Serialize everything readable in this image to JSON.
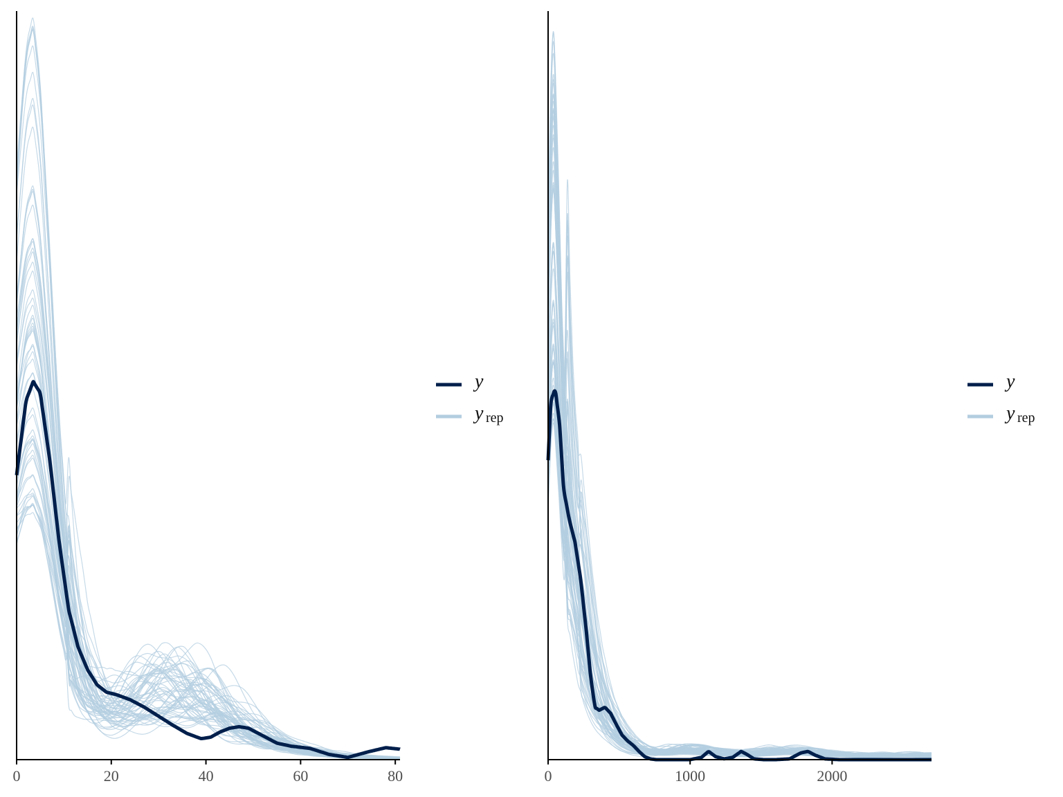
{
  "chart_data": [
    {
      "type": "line",
      "title": "",
      "xlabel": "",
      "ylabel": "",
      "xlim": [
        0,
        81
      ],
      "ylim": [
        0,
        1.0
      ],
      "x_ticks": [
        0,
        20,
        40,
        60,
        80
      ],
      "x_tick_labels": [
        "0",
        "20",
        "40",
        "60",
        "80"
      ],
      "y_axis_labels": false,
      "grid": false,
      "legend": {
        "position": "right",
        "entries": [
          {
            "main": "y",
            "sub": ""
          },
          {
            "main": "y",
            "sub": "rep"
          }
        ]
      },
      "colors": {
        "y": "#011f4b",
        "yrep": "#b3cde0"
      },
      "y_curve": {
        "x": [
          0,
          2,
          3.5,
          5,
          7,
          9,
          11,
          13,
          15,
          17,
          19,
          21,
          24,
          27,
          30,
          33,
          36,
          39,
          41,
          43,
          45,
          47,
          49,
          52,
          55,
          58,
          62,
          66,
          70,
          74,
          78,
          81
        ],
        "y": [
          0.38,
          0.48,
          0.505,
          0.49,
          0.4,
          0.29,
          0.2,
          0.15,
          0.12,
          0.1,
          0.09,
          0.087,
          0.08,
          0.07,
          0.058,
          0.046,
          0.035,
          0.028,
          0.03,
          0.037,
          0.042,
          0.044,
          0.042,
          0.032,
          0.022,
          0.018,
          0.015,
          0.007,
          0.003,
          0.01,
          0.016,
          0.014
        ]
      },
      "yrep_summary": {
        "n_draws": 60,
        "x": [
          0,
          2,
          3.5,
          5,
          7,
          9,
          11,
          13,
          15,
          17,
          19,
          21,
          24,
          27,
          30,
          33,
          36,
          39,
          42,
          45,
          48,
          51,
          55,
          60,
          65,
          70,
          75,
          81
        ],
        "mean": [
          0.37,
          0.42,
          0.43,
          0.4,
          0.32,
          0.23,
          0.16,
          0.11,
          0.085,
          0.07,
          0.064,
          0.065,
          0.074,
          0.082,
          0.088,
          0.09,
          0.088,
          0.08,
          0.068,
          0.054,
          0.042,
          0.032,
          0.022,
          0.013,
          0.007,
          0.004,
          0.003,
          0.002
        ],
        "peak_range": [
          0.33,
          1.0
        ]
      }
    },
    {
      "type": "line",
      "title": "",
      "xlabel": "",
      "ylabel": "",
      "xlim": [
        0,
        2700
      ],
      "ylim": [
        0,
        1.0
      ],
      "x_ticks": [
        0,
        1000,
        2000
      ],
      "x_tick_labels": [
        "0",
        "1000",
        "2000"
      ],
      "y_axis_labels": false,
      "grid": false,
      "legend": {
        "position": "right",
        "entries": [
          {
            "main": "y",
            "sub": ""
          },
          {
            "main": "y",
            "sub": "rep"
          }
        ]
      },
      "colors": {
        "y": "#011f4b",
        "yrep": "#b3cde0"
      },
      "y_curve": {
        "x": [
          0,
          20,
          50,
          80,
          110,
          150,
          190,
          230,
          270,
          300,
          330,
          360,
          400,
          440,
          480,
          520,
          560,
          600,
          640,
          680,
          720,
          760,
          800,
          900,
          1000,
          1080,
          1130,
          1180,
          1240,
          1300,
          1360,
          1400,
          1450,
          1520,
          1600,
          1700,
          1780,
          1830,
          1880,
          1950,
          2050,
          2200,
          2400,
          2700
        ],
        "y": [
          0.4,
          0.48,
          0.495,
          0.45,
          0.36,
          0.32,
          0.29,
          0.24,
          0.17,
          0.11,
          0.07,
          0.066,
          0.07,
          0.062,
          0.047,
          0.033,
          0.025,
          0.019,
          0.011,
          0.004,
          0.001,
          0.0,
          0.0,
          0.0,
          0.0,
          0.003,
          0.011,
          0.004,
          0.001,
          0.003,
          0.011,
          0.007,
          0.001,
          0.0,
          0.0,
          0.001,
          0.009,
          0.011,
          0.006,
          0.001,
          0.0,
          0.0,
          0.0,
          0.0
        ]
      },
      "yrep_summary": {
        "n_draws": 60,
        "x": [
          0,
          20,
          40,
          70,
          100,
          130,
          160,
          200,
          240,
          280,
          320,
          360,
          400,
          450,
          500,
          550,
          600,
          650,
          700,
          800,
          900,
          1000,
          1200,
          1400,
          1600,
          1800,
          2000,
          2200,
          2400,
          2700
        ],
        "mean": [
          0.55,
          0.7,
          0.75,
          0.62,
          0.45,
          0.36,
          0.3,
          0.24,
          0.18,
          0.13,
          0.095,
          0.07,
          0.052,
          0.038,
          0.028,
          0.021,
          0.016,
          0.012,
          0.01,
          0.009,
          0.012,
          0.013,
          0.009,
          0.007,
          0.011,
          0.01,
          0.007,
          0.005,
          0.006,
          0.005
        ],
        "peak_range": [
          0.45,
          1.0
        ]
      }
    }
  ]
}
